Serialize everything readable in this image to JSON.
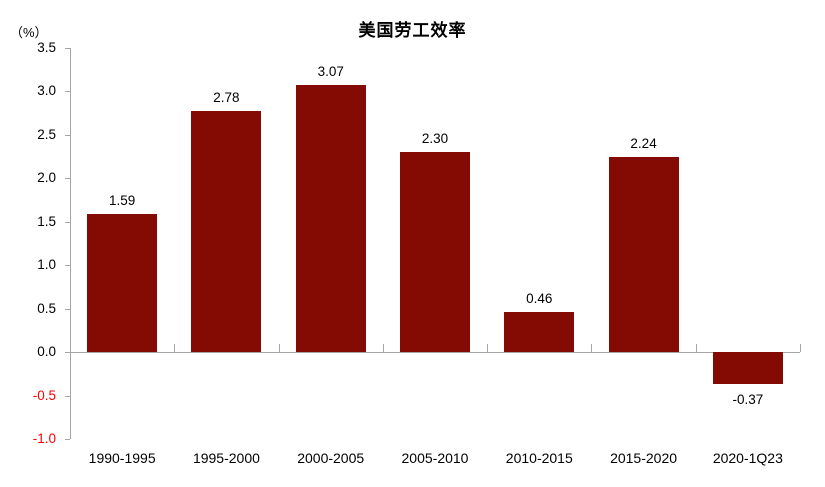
{
  "title": "美国劳工效率",
  "y_axis_unit": "（%）",
  "colors": {
    "bar": "#840B04",
    "axis": "#A6A6A6",
    "text": "#000000",
    "negative_tick_label": "#FF0000"
  },
  "chart_data": {
    "type": "bar",
    "title": "美国劳工效率",
    "categories": [
      "1990-1995",
      "1995-2000",
      "2000-2005",
      "2005-2010",
      "2010-2015",
      "2015-2020",
      "2020-1Q23"
    ],
    "values": [
      1.59,
      2.78,
      3.07,
      2.3,
      0.46,
      2.24,
      -0.37
    ],
    "data_labels": [
      "1.59",
      "2.78",
      "3.07",
      "2.30",
      "0.46",
      "2.24",
      "-0.37"
    ],
    "xlabel": "",
    "ylabel": "（%）",
    "ylim": [
      -1.0,
      3.5
    ],
    "yticks": [
      3.5,
      3.0,
      2.5,
      2.0,
      1.5,
      1.0,
      0.5,
      0.0,
      -0.5,
      -1.0
    ],
    "ytick_labels": [
      "3.5",
      "3.0",
      "2.5",
      "2.0",
      "1.5",
      "1.0",
      "0.5",
      "0.0",
      "-0.5",
      "-1.0"
    ],
    "grid": false,
    "legend_position": "none",
    "bar_color": "#840B04",
    "negative_tick_label_color": "#FF0000"
  }
}
